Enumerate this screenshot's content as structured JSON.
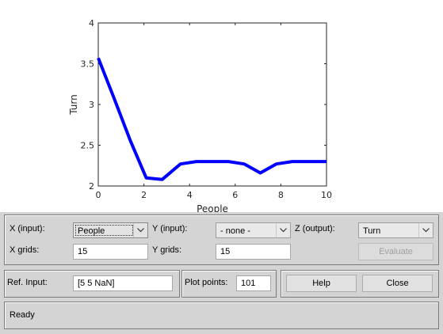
{
  "chart_data": {
    "type": "line",
    "xlabel": "People",
    "ylabel": "Turn",
    "xlim": [
      0,
      10
    ],
    "ylim": [
      2,
      4
    ],
    "x_ticks": [
      "0",
      "2",
      "4",
      "6",
      "8",
      "10"
    ],
    "y_ticks": [
      "2",
      "2.5",
      "3",
      "3.5",
      "4"
    ],
    "series": [
      {
        "color": "#0000ff",
        "x": [
          0,
          0.7,
          1.4,
          2.1,
          2.8,
          3.6,
          4.3,
          5.0,
          5.7,
          6.4,
          7.1,
          7.8,
          8.5,
          9.2,
          10
        ],
        "y": [
          3.57,
          3.07,
          2.56,
          2.1,
          2.08,
          2.27,
          2.3,
          2.3,
          2.3,
          2.27,
          2.16,
          2.27,
          2.3,
          2.3,
          2.3
        ]
      }
    ]
  },
  "controls": {
    "x_input_label": "X (input):",
    "x_input_value": "People",
    "y_input_label": "Y (input):",
    "y_input_value": "- none -",
    "z_output_label": "Z (output):",
    "z_output_value": "Turn",
    "x_grids_label": "X grids:",
    "x_grids_value": "15",
    "y_grids_label": "Y grids:",
    "y_grids_value": "15",
    "evaluate_label": "Evaluate",
    "ref_input_label": "Ref. Input:",
    "ref_input_value": "[5 5 NaN]",
    "plot_points_label": "Plot points:",
    "plot_points_value": "101",
    "help_label": "Help",
    "close_label": "Close",
    "status_text": "Ready"
  }
}
